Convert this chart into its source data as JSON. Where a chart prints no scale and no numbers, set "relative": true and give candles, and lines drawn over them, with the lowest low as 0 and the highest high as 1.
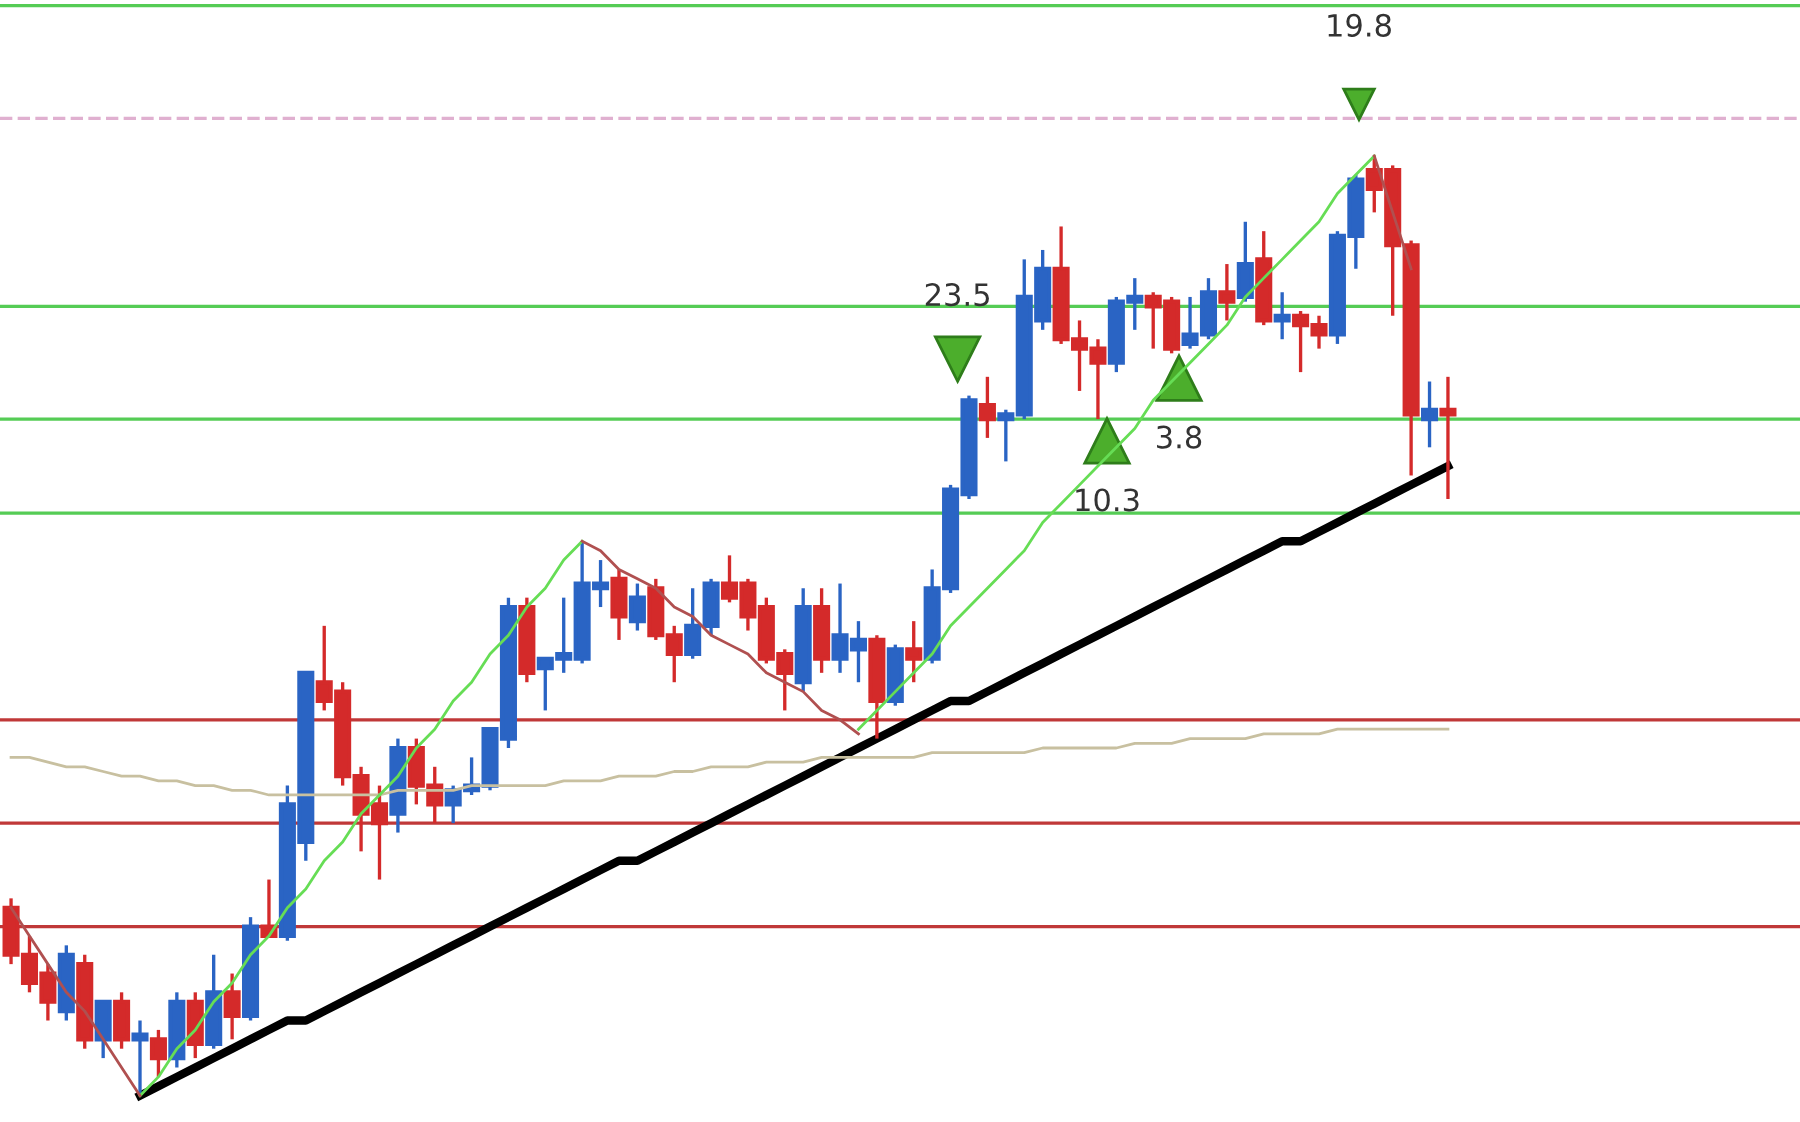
{
  "chart_data": {
    "type": "candlestick",
    "relative": true,
    "legend": false,
    "categories": [
      null,
      null,
      null,
      null,
      null,
      null,
      null,
      null,
      null,
      null,
      null,
      null,
      null,
      null,
      null,
      null,
      null,
      null,
      null,
      null,
      null,
      null,
      null,
      null,
      null,
      null,
      null,
      null,
      null,
      null,
      null,
      null,
      null,
      null,
      null,
      null,
      null,
      null,
      null,
      null,
      null,
      null,
      null,
      null,
      null,
      null,
      null,
      null,
      null,
      null,
      null,
      null,
      null,
      null,
      null,
      null,
      null,
      null,
      null,
      null,
      null,
      null,
      null,
      null,
      null,
      null,
      null,
      null,
      null,
      null,
      null,
      null,
      null,
      null,
      null,
      null,
      null,
      null,
      null
    ],
    "ohlc": [
      [
        0.2,
        0.21,
        0.14,
        0.15
      ],
      [
        0.15,
        0.17,
        0.11,
        0.12
      ],
      [
        0.13,
        0.14,
        0.08,
        0.1
      ],
      [
        0.09,
        0.16,
        0.08,
        0.15
      ],
      [
        0.14,
        0.15,
        0.05,
        0.06
      ],
      [
        0.06,
        0.1,
        0.04,
        0.1
      ],
      [
        0.1,
        0.11,
        0.05,
        0.06
      ],
      [
        0.06,
        0.08,
        0.0,
        0.065
      ],
      [
        0.06,
        0.07,
        0.02,
        0.04
      ],
      [
        0.04,
        0.11,
        0.03,
        0.1
      ],
      [
        0.1,
        0.11,
        0.04,
        0.055
      ],
      [
        0.055,
        0.15,
        0.05,
        0.11
      ],
      [
        0.11,
        0.13,
        0.06,
        0.085
      ],
      [
        0.085,
        0.19,
        0.08,
        0.18
      ],
      [
        0.18,
        0.23,
        0.17,
        0.17
      ],
      [
        0.17,
        0.33,
        0.165,
        0.31
      ],
      [
        0.27,
        0.45,
        0.25,
        0.45
      ],
      [
        0.44,
        0.5,
        0.41,
        0.42
      ],
      [
        0.43,
        0.44,
        0.33,
        0.34
      ],
      [
        0.34,
        0.35,
        0.26,
        0.3
      ],
      [
        0.31,
        0.33,
        0.23,
        0.29
      ],
      [
        0.3,
        0.38,
        0.28,
        0.37
      ],
      [
        0.37,
        0.38,
        0.31,
        0.33
      ],
      [
        0.33,
        0.35,
        0.29,
        0.31
      ],
      [
        0.31,
        0.33,
        0.29,
        0.325
      ],
      [
        0.325,
        0.36,
        0.32,
        0.33
      ],
      [
        0.33,
        0.39,
        0.325,
        0.39
      ],
      [
        0.38,
        0.53,
        0.37,
        0.52
      ],
      [
        0.52,
        0.53,
        0.44,
        0.45
      ],
      [
        0.455,
        0.465,
        0.41,
        0.465
      ],
      [
        0.465,
        0.53,
        0.45,
        0.47
      ],
      [
        0.465,
        0.59,
        0.46,
        0.545
      ],
      [
        0.54,
        0.57,
        0.52,
        0.545
      ],
      [
        0.55,
        0.56,
        0.485,
        0.51
      ],
      [
        0.505,
        0.545,
        0.495,
        0.53
      ],
      [
        0.54,
        0.55,
        0.485,
        0.49
      ],
      [
        0.49,
        0.5,
        0.44,
        0.47
      ],
      [
        0.47,
        0.54,
        0.465,
        0.5
      ],
      [
        0.5,
        0.55,
        0.49,
        0.545
      ],
      [
        0.545,
        0.575,
        0.525,
        0.53
      ],
      [
        0.545,
        0.55,
        0.495,
        0.51
      ],
      [
        0.52,
        0.53,
        0.46,
        0.465
      ],
      [
        0.47,
        0.475,
        0.41,
        0.45
      ],
      [
        0.44,
        0.54,
        0.43,
        0.52
      ],
      [
        0.52,
        0.54,
        0.45,
        0.465
      ],
      [
        0.465,
        0.545,
        0.45,
        0.49
      ],
      [
        0.475,
        0.505,
        0.44,
        0.485
      ],
      [
        0.485,
        0.49,
        0.38,
        0.42
      ],
      [
        0.42,
        0.48,
        0.415,
        0.475
      ],
      [
        0.475,
        0.505,
        0.44,
        0.465
      ],
      [
        0.465,
        0.56,
        0.46,
        0.54
      ],
      [
        0.54,
        0.65,
        0.535,
        0.645
      ],
      [
        0.64,
        0.745,
        0.635,
        0.74
      ],
      [
        0.735,
        0.765,
        0.7,
        0.72
      ],
      [
        0.72,
        0.73,
        0.675,
        0.725
      ],
      [
        0.725,
        0.89,
        0.72,
        0.85
      ],
      [
        0.825,
        0.9,
        0.815,
        0.88
      ],
      [
        0.88,
        0.925,
        0.8,
        0.805
      ],
      [
        0.805,
        0.825,
        0.75,
        0.795
      ],
      [
        0.795,
        0.805,
        0.72,
        0.78
      ],
      [
        0.78,
        0.85,
        0.77,
        0.845
      ],
      [
        0.845,
        0.87,
        0.815,
        0.85
      ],
      [
        0.85,
        0.855,
        0.795,
        0.84
      ],
      [
        0.845,
        0.85,
        0.79,
        0.795
      ],
      [
        0.8,
        0.85,
        0.795,
        0.81
      ],
      [
        0.81,
        0.87,
        0.805,
        0.855
      ],
      [
        0.855,
        0.885,
        0.825,
        0.845
      ],
      [
        0.85,
        0.93,
        0.845,
        0.885
      ],
      [
        0.89,
        0.92,
        0.82,
        0.825
      ],
      [
        0.825,
        0.855,
        0.805,
        0.83
      ],
      [
        0.83,
        0.835,
        0.77,
        0.82
      ],
      [
        0.82,
        0.83,
        0.795,
        0.81
      ],
      [
        0.81,
        0.92,
        0.8,
        0.915
      ],
      [
        0.915,
        0.98,
        0.88,
        0.975
      ],
      [
        0.985,
        1.0,
        0.94,
        0.965
      ],
      [
        0.985,
        0.99,
        0.83,
        0.905
      ],
      [
        0.905,
        0.91,
        0.66,
        0.725
      ],
      [
        0.72,
        0.76,
        0.69,
        0.73
      ],
      [
        0.73,
        0.765,
        0.635,
        0.725
      ]
    ],
    "colors": [
      "#d42a2a",
      "#d42a2a",
      "#d42a2a",
      "#2a64c4",
      "#d42a2a",
      "#2a64c4",
      "#d42a2a",
      "#2a64c4",
      "#d42a2a",
      "#2a64c4",
      "#d42a2a",
      "#2a64c4",
      "#d42a2a",
      "#2a64c4",
      "#d42a2a",
      "#2a64c4",
      "#2a64c4",
      "#d42a2a",
      "#d42a2a",
      "#d42a2a",
      "#d42a2a",
      "#2a64c4",
      "#d42a2a",
      "#d42a2a",
      "#2a64c4",
      "#2a64c4",
      "#2a64c4",
      "#2a64c4",
      "#d42a2a",
      "#2a64c4",
      "#2a64c4",
      "#2a64c4",
      "#2a64c4",
      "#d42a2a",
      "#2a64c4",
      "#d42a2a",
      "#d42a2a",
      "#2a64c4",
      "#2a64c4",
      "#d42a2a",
      "#d42a2a",
      "#d42a2a",
      "#d42a2a",
      "#2a64c4",
      "#d42a2a",
      "#2a64c4",
      "#2a64c4",
      "#d42a2a",
      "#2a64c4",
      "#d42a2a",
      "#2a64c4",
      "#2a64c4",
      "#2a64c4",
      "#d42a2a",
      "#2a64c4",
      "#2a64c4",
      "#2a64c4",
      "#d42a2a",
      "#d42a2a",
      "#d42a2a",
      "#2a64c4",
      "#2a64c4",
      "#d42a2a",
      "#d42a2a",
      "#2a64c4",
      "#2a64c4",
      "#d42a2a",
      "#2a64c4",
      "#d42a2a",
      "#2a64c4",
      "#d42a2a",
      "#d42a2a",
      "#2a64c4",
      "#2a64c4",
      "#d42a2a",
      "#d42a2a",
      "#d42a2a",
      "#2a64c4",
      "#d42a2a"
    ],
    "series": [
      {
        "type": "line",
        "color": "#c8c0a0",
        "values": [
          0.36,
          0.36,
          0.355,
          0.35,
          0.35,
          0.345,
          0.34,
          0.34,
          0.335,
          0.335,
          0.33,
          0.33,
          0.325,
          0.325,
          0.32,
          0.32,
          0.32,
          0.32,
          0.32,
          0.32,
          0.32,
          0.325,
          0.325,
          0.325,
          0.325,
          0.33,
          0.33,
          0.33,
          0.33,
          0.33,
          0.335,
          0.335,
          0.335,
          0.34,
          0.34,
          0.34,
          0.345,
          0.345,
          0.35,
          0.35,
          0.35,
          0.355,
          0.355,
          0.355,
          0.36,
          0.36,
          0.36,
          0.36,
          0.36,
          0.36,
          0.365,
          0.365,
          0.365,
          0.365,
          0.365,
          0.365,
          0.37,
          0.37,
          0.37,
          0.37,
          0.37,
          0.375,
          0.375,
          0.375,
          0.38,
          0.38,
          0.38,
          0.38,
          0.385,
          0.385,
          0.385,
          0.385,
          0.39,
          0.39,
          0.39,
          0.39,
          0.39,
          0.39,
          0.39
        ]
      },
      {
        "type": "line",
        "color": "#66dd55",
        "values": [
          null,
          null,
          null,
          null,
          null,
          null,
          null,
          0.0,
          0.02,
          0.05,
          0.07,
          0.1,
          0.12,
          0.15,
          0.17,
          0.2,
          0.22,
          0.25,
          0.27,
          0.3,
          0.32,
          0.34,
          0.37,
          0.39,
          0.42,
          0.44,
          0.47,
          0.49,
          0.52,
          0.54,
          0.57,
          0.59,
          null,
          null,
          null,
          null,
          null,
          null,
          null,
          null,
          null,
          null,
          null,
          null,
          null,
          null,
          0.39,
          0.41,
          0.43,
          0.45,
          0.47,
          0.5,
          0.52,
          0.54,
          0.56,
          0.58,
          0.61,
          0.63,
          0.65,
          0.67,
          0.69,
          0.71,
          0.74,
          0.76,
          0.78,
          0.8,
          0.82,
          0.85,
          0.87,
          0.89,
          0.91,
          0.93,
          0.96,
          0.98,
          1.0,
          null,
          null,
          null,
          null
        ]
      },
      {
        "type": "line",
        "color": "#b05050",
        "values": [
          0.2,
          0.17,
          0.14,
          0.11,
          0.09,
          0.06,
          0.03,
          0.0,
          null,
          null,
          null,
          null,
          null,
          null,
          null,
          null,
          null,
          null,
          null,
          null,
          null,
          null,
          null,
          null,
          null,
          null,
          null,
          null,
          null,
          null,
          null,
          0.59,
          0.58,
          0.56,
          0.55,
          0.54,
          0.52,
          0.51,
          0.49,
          0.48,
          0.47,
          0.45,
          0.44,
          0.43,
          0.41,
          0.4,
          0.385,
          null,
          null,
          null,
          null,
          null,
          null,
          null,
          null,
          null,
          null,
          null,
          null,
          null,
          null,
          null,
          null,
          null,
          null,
          null,
          null,
          null,
          null,
          null,
          null,
          null,
          null,
          null,
          1.0,
          0.94,
          0.88,
          null,
          null
        ]
      },
      {
        "type": "line",
        "color": "#000000",
        "values": [
          null,
          null,
          null,
          null,
          null,
          null,
          null,
          0.0,
          0.01,
          0.02,
          0.03,
          0.04,
          0.05,
          0.06,
          0.07,
          0.08,
          0.08,
          0.09,
          0.1,
          0.11,
          0.12,
          0.13,
          0.14,
          0.15,
          0.16,
          0.17,
          0.18,
          0.19,
          0.2,
          0.21,
          0.22,
          0.23,
          0.24,
          0.25,
          0.25,
          0.26,
          0.27,
          0.28,
          0.29,
          0.3,
          0.31,
          0.32,
          0.33,
          0.34,
          0.35,
          0.36,
          0.37,
          0.38,
          0.39,
          0.4,
          0.41,
          0.42,
          0.42,
          0.43,
          0.44,
          0.45,
          0.46,
          0.47,
          0.48,
          0.49,
          0.5,
          0.51,
          0.52,
          0.53,
          0.54,
          0.55,
          0.56,
          0.57,
          0.58,
          0.59,
          0.59,
          0.6,
          0.61,
          0.62,
          0.63,
          0.64,
          0.65,
          0.66,
          0.67
        ]
      }
    ],
    "ref_lines": [
      {
        "axis": "y",
        "value": 1.16,
        "color": "#55cc55"
      },
      {
        "axis": "y",
        "value": 1.04,
        "color": "#e0b0d0",
        "line_style": "dashed"
      },
      {
        "axis": "y",
        "value": 0.84,
        "color": "#55cc55"
      },
      {
        "axis": "y",
        "value": 0.72,
        "color": "#55cc55"
      },
      {
        "axis": "y",
        "value": 0.62,
        "color": "#55cc55"
      },
      {
        "axis": "y",
        "value": 0.4,
        "color": "#c03838"
      },
      {
        "axis": "y",
        "value": 0.29,
        "color": "#c03838"
      },
      {
        "axis": "y",
        "value": 0.18,
        "color": "#c03838"
      }
    ],
    "annotations": [
      "23.5",
      "10.3",
      "3.8",
      "19.8"
    ]
  }
}
